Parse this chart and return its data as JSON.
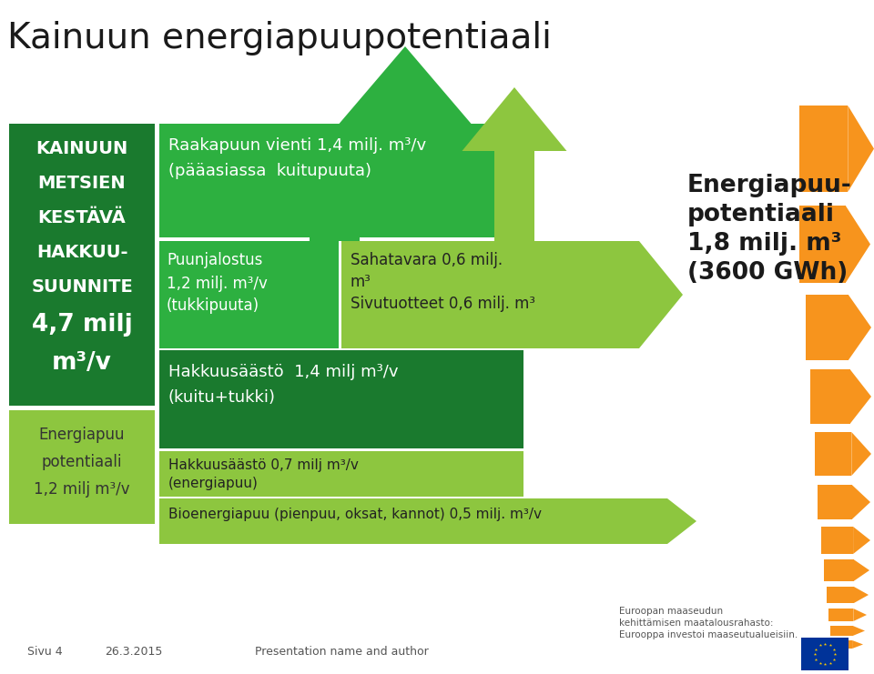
{
  "title": "Kainuun energiapuupotentiaali",
  "title_fontsize": 28,
  "bg_color": "#ffffff",
  "dark_green": "#1a7a2e",
  "medium_green": "#2db040",
  "light_green": "#8dc63f",
  "orange": "#f7941d",
  "left_box_lines": [
    "KAINUUN",
    "METSIEN",
    "KESTÄVÄ",
    "HAKKUU-",
    "SUUNNITE",
    "4,7 milj",
    "m³/v"
  ],
  "bottom_left_lines": [
    "Energiapuu",
    "potentiaali",
    "1,2 milj m³/v"
  ],
  "right_lines": [
    "Energiapuu-",
    "potentiaali",
    "1,8 milj. m³",
    "(3600 GWh)"
  ],
  "row1_text_line1": "Raakapuun vienti 1,4 milj. m³/v",
  "row1_text_line2": "(pääasiassa  kuitupuuta)",
  "row2a_line1": "Puunjalostus",
  "row2a_line2": "1,2 milj. m³/v",
  "row2a_line3": "(tukkipuuta)",
  "row2b_line1": "Sahatavara 0,6 milj.",
  "row2b_line2": "m³",
  "row2b_line3": "Sivutuotteet 0,6 milj. m³",
  "row3_line1": "Hakkuusäästö  1,4 milj m³/v",
  "row3_line2": "(kuitu+tukki)",
  "row4a_line1": "Hakkuusäästö 0,7 milj m³/v",
  "row4a_line2": "(energiapuu)",
  "row4b_text": "Bioenergiapuu (pienpuu, oksat, kannot) 0,5 milj. m³/v",
  "footer_left": "Sivu 4",
  "footer_date": "26.3.2015",
  "footer_center": "Presentation name and author",
  "footer_right_line1": "Euroopan maaseudun",
  "footer_right_line2": "kehittämisen maatalousrahasto:",
  "footer_right_line3": "Eurooppa investoi maaseutualueisiin."
}
